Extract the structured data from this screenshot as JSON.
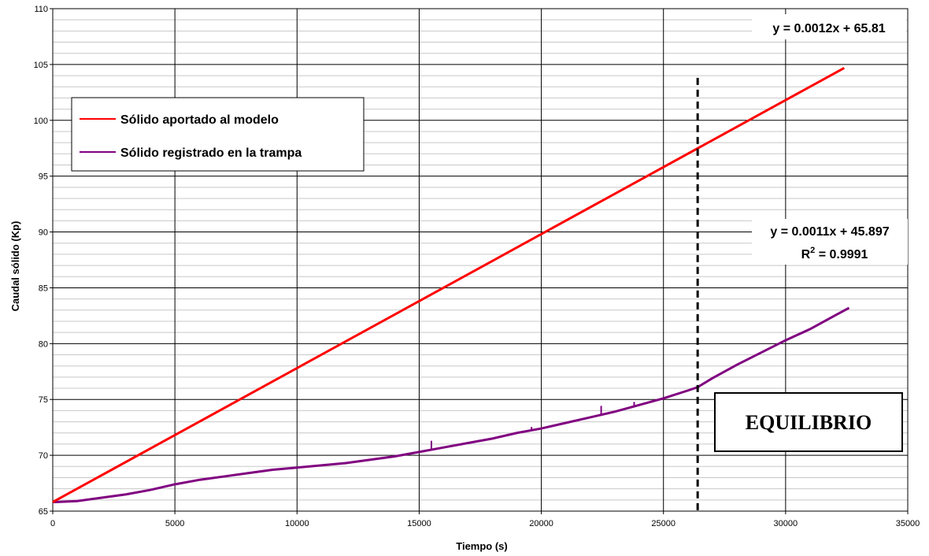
{
  "chart_data": {
    "type": "line",
    "title": "",
    "xlabel": "Tiempo (s)",
    "ylabel": "Caudal sólido (Kp)",
    "xlim": [
      0,
      35000
    ],
    "ylim": [
      65,
      110
    ],
    "x_ticks": [
      0,
      5000,
      10000,
      15000,
      20000,
      25000,
      30000,
      35000
    ],
    "y_ticks": [
      65,
      70,
      75,
      80,
      85,
      90,
      95,
      100,
      105,
      110
    ],
    "grid": {
      "major": true,
      "minor_y": true
    },
    "legend_position": "top-left",
    "series": [
      {
        "name": "Sólido aportado al modelo",
        "color": "#ff0000",
        "x": [
          0,
          32400
        ],
        "y": [
          65.81,
          104.69
        ]
      },
      {
        "name": "Sólido registrado en la trampa",
        "color": "#800080",
        "x": [
          0,
          1000,
          2000,
          3000,
          4000,
          5000,
          6000,
          7000,
          8000,
          9000,
          10000,
          11000,
          12000,
          13000,
          14000,
          15000,
          16000,
          17000,
          18000,
          19000,
          20000,
          21000,
          22000,
          23000,
          24000,
          25000,
          26000,
          26400,
          27000,
          28000,
          29000,
          30000,
          31000,
          32000,
          32600
        ],
        "y": [
          65.8,
          65.9,
          66.2,
          66.5,
          66.9,
          67.4,
          67.8,
          68.1,
          68.4,
          68.7,
          68.9,
          69.1,
          69.3,
          69.6,
          69.9,
          70.3,
          70.7,
          71.1,
          71.5,
          72.0,
          72.4,
          72.9,
          73.4,
          73.9,
          74.5,
          75.1,
          75.8,
          76.1,
          76.9,
          78.1,
          79.2,
          80.3,
          81.3,
          82.5,
          83.2
        ]
      }
    ],
    "annotations": {
      "eq_red": "y = 0.0012x + 65.81",
      "eq_purple": "y = 0.0011x + 45.897",
      "r2_label": "R",
      "r2_sup": "2",
      "r2_value": " = 0.9991",
      "equilibrium_label": "EQUILIBRIO",
      "equilibrium_x": 26400,
      "equilibrium_y_top": 103.8
    }
  }
}
